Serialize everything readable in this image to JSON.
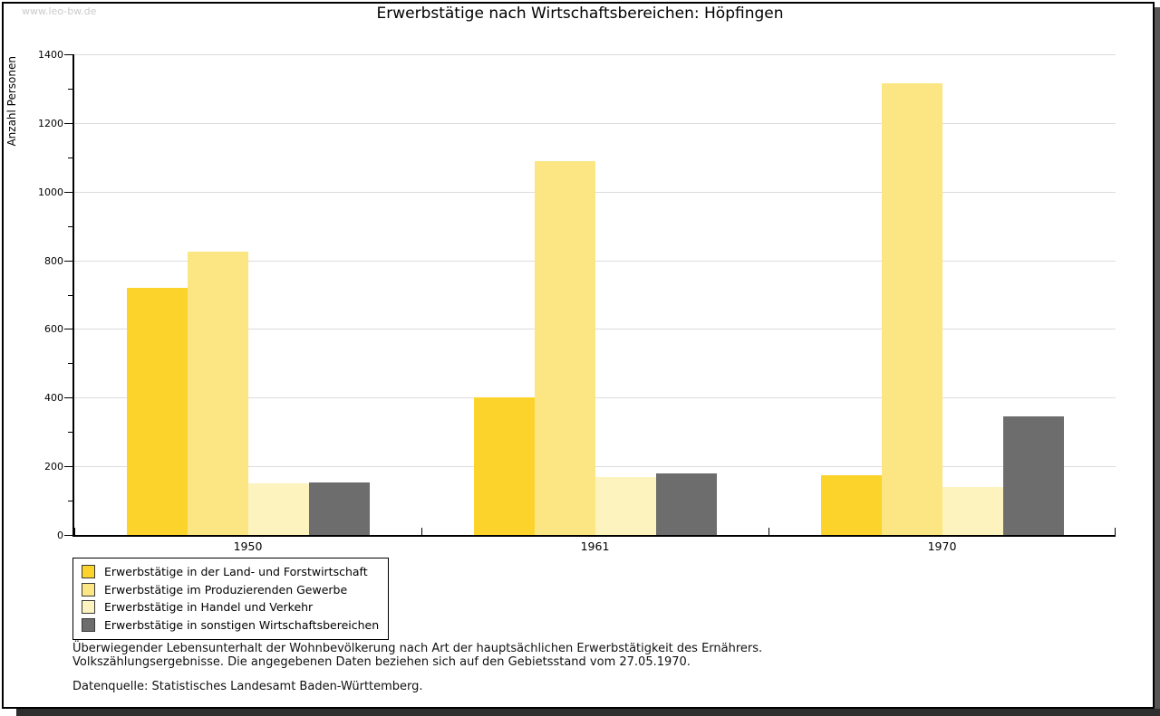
{
  "watermark": "www.leo-bw.de",
  "chart_data": {
    "type": "bar",
    "title": "Erwerbstätige nach Wirtschaftsbereichen: Höpfingen",
    "ylabel": "Anzahl Personen",
    "xlabel": "",
    "categories": [
      "1950",
      "1961",
      "1970"
    ],
    "series": [
      {
        "name": "Erwerbstätige in der Land- und Forstwirtschaft",
        "color": "#FCD32B",
        "values": [
          720,
          400,
          175
        ]
      },
      {
        "name": "Erwerbstätige im Produzierenden Gewerbe",
        "color": "#FCE683",
        "values": [
          825,
          1090,
          1315
        ]
      },
      {
        "name": "Erwerbstätige in Handel und Verkehr",
        "color": "#FDF3BE",
        "values": [
          150,
          170,
          140
        ]
      },
      {
        "name": "Erwerbstätige in sonstigen Wirtschaftsbereichen",
        "color": "#6D6D6D",
        "values": [
          153,
          180,
          345
        ]
      }
    ],
    "ylim": [
      0,
      1400
    ],
    "ytick_step": 200,
    "yticks": [
      0,
      200,
      400,
      600,
      800,
      1000,
      1200,
      1400
    ],
    "minor_tick_step": 100,
    "grid": true,
    "legend_position": "bottom-left"
  },
  "colors": {
    "gridline": "#DCDCDC",
    "axis": "#000000",
    "watermark_text": "#CBCBCB"
  },
  "footnotes": [
    "Überwiegender Lebensunterhalt der Wohnbevölkerung nach Art der hauptsächlichen Erwerbstätigkeit des Ernährers.",
    "Volkszählungsergebnisse. Die angegebenen Daten beziehen sich auf den Gebietsstand vom 27.05.1970.",
    "Datenquelle: Statistisches Landesamt Baden-Württemberg."
  ]
}
